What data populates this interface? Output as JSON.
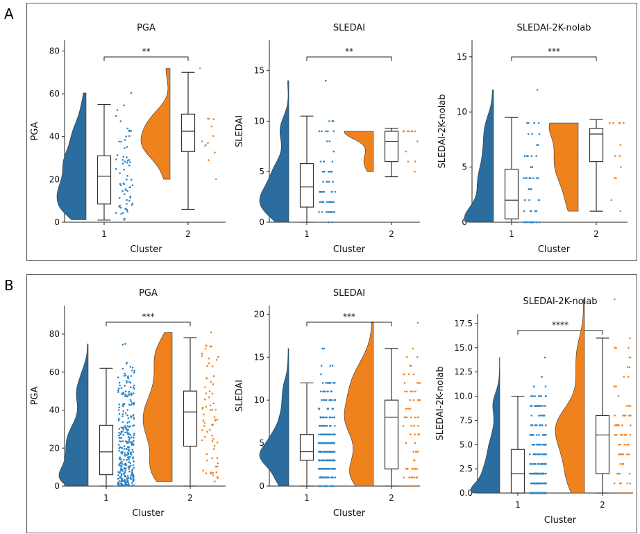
{
  "panels": [
    {
      "label": "A",
      "plots": [
        {
          "chart_data": {
            "type": "raincloud",
            "title": "PGA",
            "xlabel": "Cluster",
            "ylabel": "PGA",
            "categories": [
              "1",
              "2"
            ],
            "ylim": [
              0,
              85
            ],
            "yticks": [
              0,
              20,
              40,
              60,
              80
            ],
            "significance": "**",
            "series": [
              {
                "name": "1",
                "color": "#2a6d9e",
                "box": {
                  "min": 1,
                  "q1": 8.5,
                  "median": 21.5,
                  "q3": 31,
                  "max": 55
                },
                "n_points": 65
              },
              {
                "name": "2",
                "color": "#f0821e",
                "box": {
                  "min": 6,
                  "q1": 33,
                  "median": 42.5,
                  "q3": 50.5,
                  "max": 70
                },
                "n_points": 12
              }
            ]
          }
        },
        {
          "chart_data": {
            "type": "raincloud",
            "title": "SLEDAI",
            "xlabel": "Cluster",
            "ylabel": "SLEDAI",
            "categories": [
              "1",
              "2"
            ],
            "ylim": [
              0,
              18
            ],
            "yticks": [
              0,
              5,
              10,
              15
            ],
            "significance": "**",
            "series": [
              {
                "name": "1",
                "color": "#2a6d9e",
                "box": {
                  "min": 0,
                  "q1": 1.5,
                  "median": 3.5,
                  "q3": 5.8,
                  "max": 10.5
                },
                "n_points": 65
              },
              {
                "name": "2",
                "color": "#f0821e",
                "box": {
                  "min": 4.5,
                  "q1": 6,
                  "median": 8,
                  "q3": 9,
                  "max": 9.3
                },
                "n_points": 12
              }
            ]
          }
        },
        {
          "chart_data": {
            "type": "raincloud",
            "title": "SLEDAI-2K-nolab",
            "xlabel": "Cluster",
            "ylabel": "SLEDAI-2K-nolab",
            "categories": [
              "1",
              "2"
            ],
            "ylim": [
              0,
              16.5
            ],
            "yticks": [
              0,
              5,
              10,
              15
            ],
            "significance": "***",
            "series": [
              {
                "name": "1",
                "color": "#2a6d9e",
                "box": {
                  "min": 0,
                  "q1": 0.3,
                  "median": 2,
                  "q3": 4.8,
                  "max": 9.5
                },
                "n_points": 65
              },
              {
                "name": "2",
                "color": "#f0821e",
                "box": {
                  "min": 1,
                  "q1": 5.5,
                  "median": 8,
                  "q3": 8.5,
                  "max": 9.3
                },
                "n_points": 12
              }
            ]
          }
        }
      ]
    },
    {
      "label": "B",
      "plots": [
        {
          "chart_data": {
            "type": "raincloud",
            "title": "PGA",
            "xlabel": "Cluster",
            "ylabel": "PGA",
            "categories": [
              "1",
              "2"
            ],
            "ylim": [
              0,
              95
            ],
            "yticks": [
              0,
              20,
              40,
              60,
              80
            ],
            "significance": "***",
            "series": [
              {
                "name": "1",
                "color": "#2a6d9e",
                "box": {
                  "min": 0,
                  "q1": 6,
                  "median": 18,
                  "q3": 32,
                  "max": 62
                },
                "n_points": 300
              },
              {
                "name": "2",
                "color": "#f0821e",
                "box": {
                  "min": 0,
                  "q1": 21,
                  "median": 39,
                  "q3": 50,
                  "max": 78
                },
                "n_points": 70
              }
            ]
          }
        },
        {
          "chart_data": {
            "type": "raincloud",
            "title": "SLEDAI",
            "xlabel": "Cluster",
            "ylabel": "SLEDAI",
            "categories": [
              "1",
              "2"
            ],
            "ylim": [
              0,
              21
            ],
            "yticks": [
              0,
              5,
              10,
              15,
              20
            ],
            "significance": "***",
            "series": [
              {
                "name": "1",
                "color": "#2a6d9e",
                "box": {
                  "min": 0,
                  "q1": 3,
                  "median": 4,
                  "q3": 6,
                  "max": 12
                },
                "n_points": 300
              },
              {
                "name": "2",
                "color": "#f0821e",
                "box": {
                  "min": 0,
                  "q1": 2,
                  "median": 8,
                  "q3": 10,
                  "max": 16
                },
                "n_points": 70
              }
            ]
          }
        },
        {
          "chart_data": {
            "type": "raincloud",
            "title": "SLEDAI-2K-nolab",
            "xlabel": "Cluster",
            "ylabel": "SLEDAI-2K-nolab",
            "categories": [
              "1",
              "2"
            ],
            "ylim": [
              0,
              18.5
            ],
            "yticks": [
              0.0,
              2.5,
              5.0,
              7.5,
              10.0,
              12.5,
              15.0,
              17.5
            ],
            "ytick_labels": [
              "0.0",
              "2.5",
              "5.0",
              "7.5",
              "10.0",
              "12.5",
              "15.0",
              "17.5"
            ],
            "significance": "****",
            "series": [
              {
                "name": "1",
                "color": "#2a6d9e",
                "box": {
                  "min": 0,
                  "q1": 0,
                  "median": 2,
                  "q3": 4.5,
                  "max": 10
                },
                "n_points": 300
              },
              {
                "name": "2",
                "color": "#f0821e",
                "box": {
                  "min": 0,
                  "q1": 2,
                  "median": 6,
                  "q3": 8,
                  "max": 16
                },
                "n_points": 70
              }
            ]
          }
        }
      ]
    }
  ]
}
